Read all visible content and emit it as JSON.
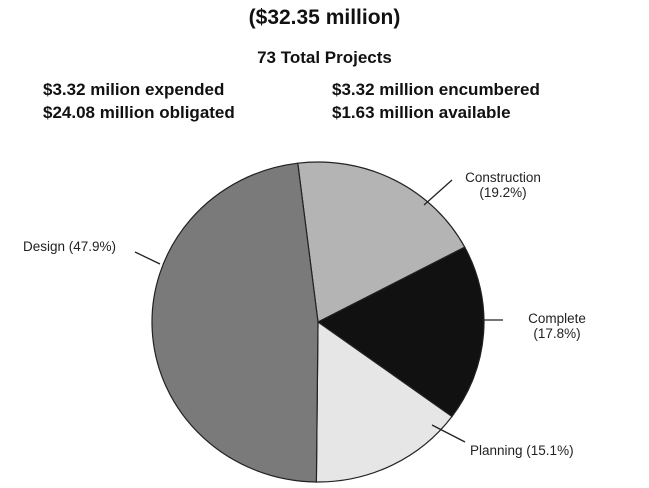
{
  "header": {
    "headline": "($32.35 million)",
    "projects": "73 Total Projects"
  },
  "financials": {
    "expended": "$3.32 milion expended",
    "obligated": "$24.08 million obligated",
    "encumbered": "$3.32 million encumbered",
    "available": "$1.63 million available"
  },
  "chart_data": {
    "type": "pie",
    "title": "",
    "slices": [
      {
        "name": "Construction",
        "percent": 19.2,
        "display": "(19.2%)",
        "color": "#b4b4b4"
      },
      {
        "name": "Complete",
        "percent": 17.8,
        "display": "(17.8%)",
        "color": "#111111"
      },
      {
        "name": "Planning",
        "percent": 15.1,
        "display": "(15.1%)",
        "color": "#e6e6e6"
      },
      {
        "name": "Design",
        "percent": 47.9,
        "display": "(47.9%)",
        "color": "#7a7a7a"
      }
    ],
    "labels": {
      "construction": {
        "name": "Construction",
        "value": "(19.2%)"
      },
      "complete": {
        "name": "Complete",
        "value": "(17.8%)"
      },
      "planning": "Planning (15.1%)",
      "design": "Design (47.9%)"
    }
  }
}
